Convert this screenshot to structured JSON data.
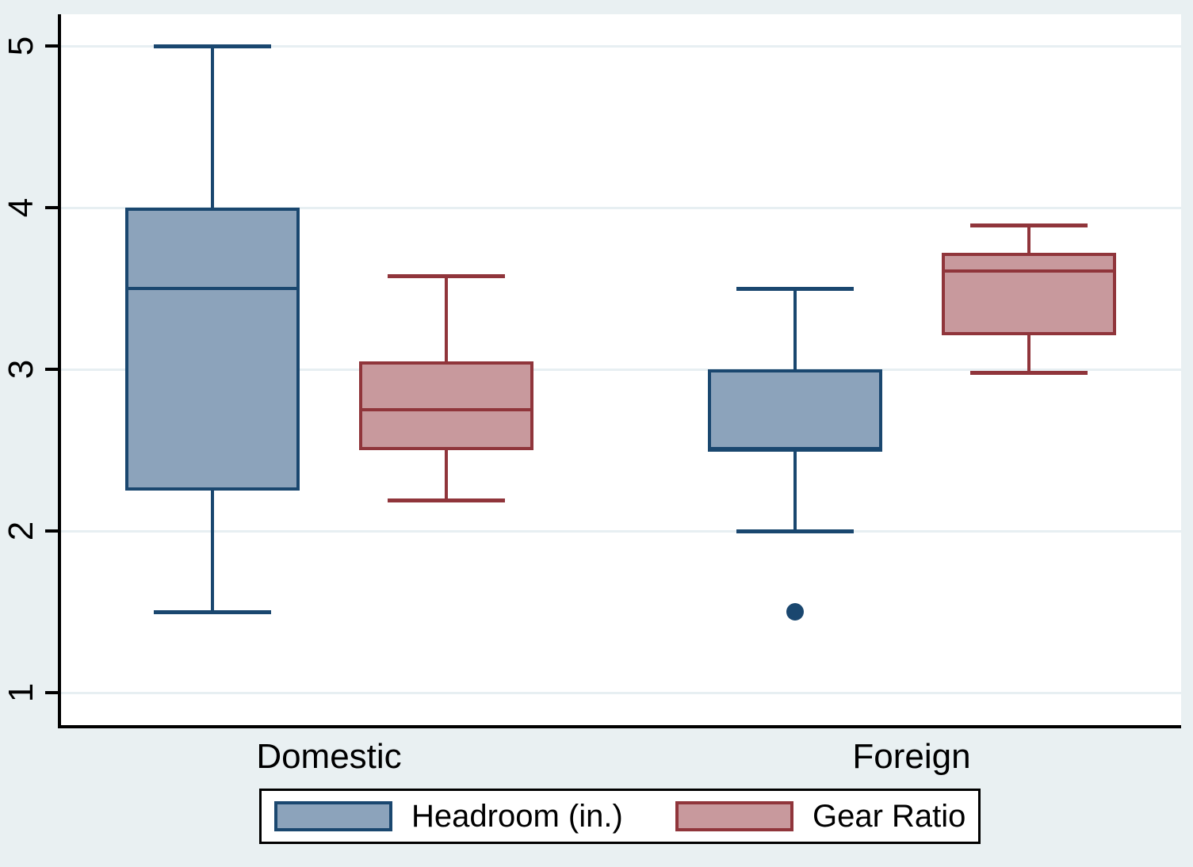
{
  "chart_data": {
    "type": "box",
    "title": "",
    "groups": [
      "Domestic",
      "Foreign"
    ],
    "series": [
      {
        "name": "Headroom (in.)",
        "fill": "#8ca3bb",
        "border": "#1a476f"
      },
      {
        "name": "Gear Ratio",
        "fill": "#c8999d",
        "border": "#90353b"
      }
    ],
    "boxes": [
      {
        "group": "Domestic",
        "series": "Headroom (in.)",
        "whisker_low": 1.5,
        "q1": 2.25,
        "median": 3.5,
        "q3": 4.0,
        "whisker_high": 5.0,
        "outliers": []
      },
      {
        "group": "Domestic",
        "series": "Gear Ratio",
        "whisker_low": 2.19,
        "q1": 2.5,
        "median": 2.75,
        "q3": 3.05,
        "whisker_high": 3.58,
        "outliers": []
      },
      {
        "group": "Foreign",
        "series": "Headroom (in.)",
        "whisker_low": 2.0,
        "q1": 2.5,
        "median": 2.5,
        "q3": 3.0,
        "whisker_high": 3.5,
        "outliers": [
          1.5
        ]
      },
      {
        "group": "Foreign",
        "series": "Gear Ratio",
        "whisker_low": 2.98,
        "q1": 3.21,
        "median": 3.61,
        "q3": 3.72,
        "whisker_high": 3.89,
        "outliers": []
      }
    ],
    "y_axis": {
      "ticks": [
        1,
        2,
        3,
        4,
        5
      ],
      "tick_labels": [
        "1",
        "2",
        "3",
        "4",
        "5"
      ],
      "range": [
        0.8,
        5.2
      ],
      "grid": true,
      "tick_label_angle_deg": 90
    },
    "x_axis": {
      "labels": [
        "Domestic",
        "Foreign"
      ]
    },
    "legend": {
      "position": "bottom",
      "entries": [
        "Headroom (in.)",
        "Gear Ratio"
      ]
    },
    "colors": {
      "outer_background": "#e9f0f2",
      "plot_background": "#ffffff",
      "gridline": "#e7eff2",
      "axis": "#000000",
      "text": "#000000",
      "legend_background": "#ffffff",
      "legend_border": "#000000"
    }
  }
}
